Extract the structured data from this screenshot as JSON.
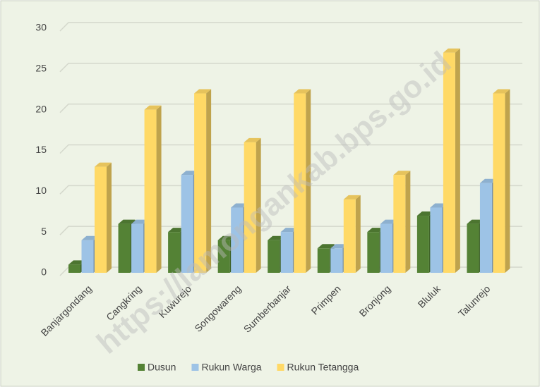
{
  "chart_data": {
    "type": "bar",
    "categories": [
      "Banjargondang",
      "Cangkring",
      "Kuwurejo",
      "Songowareng",
      "Sumberbanjar",
      "Primpen",
      "Bronjong",
      "Bluluk",
      "Talunrejo"
    ],
    "series": [
      {
        "name": "Dusun",
        "color": "#548235",
        "values": [
          1,
          6,
          5,
          4,
          4,
          3,
          5,
          7,
          6
        ]
      },
      {
        "name": "Rukun Warga",
        "color": "#9dc3e6",
        "values": [
          4,
          6,
          12,
          8,
          5,
          3,
          6,
          8,
          11
        ]
      },
      {
        "name": "Rukun Tetangga",
        "color": "#ffd966",
        "values": [
          13,
          20,
          22,
          16,
          22,
          9,
          12,
          27,
          22
        ]
      }
    ],
    "ylim": [
      0,
      30
    ],
    "yticks": [
      0,
      5,
      10,
      15,
      20,
      25,
      30
    ],
    "grid": true,
    "legend": "bottom",
    "watermark": "https://lamongankab.bps.go.id"
  }
}
